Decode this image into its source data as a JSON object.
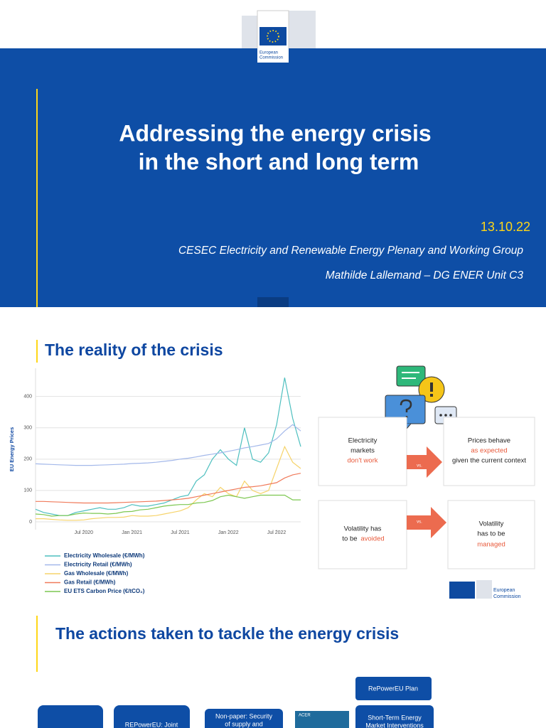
{
  "header": {
    "logo_text": [
      "European",
      "Commission"
    ]
  },
  "title_slide": {
    "title": [
      "Addressing the energy crisis",
      "in the short and long term"
    ],
    "date": "13.10.22",
    "subtitle": "CESEC Electricity and Renewable Energy Plenary and Working Group",
    "author": "Mathilde Lallemand – DG ENER Unit C3"
  },
  "reality_slide": {
    "title": "The reality of the crisis",
    "comparisons": [
      {
        "left": [
          "Electricity",
          "markets"
        ],
        "left_highlight": "don't work",
        "vs": "vs.",
        "right": [
          "Prices behave"
        ],
        "right_highlight": "as expected",
        "right_after": "given the current context"
      },
      {
        "left": [
          "Volatility has"
        ],
        "left_prefix": "to be",
        "left_highlight": "avoided",
        "vs": "vs.",
        "right": [
          "Volatility",
          "has to be"
        ],
        "right_highlight": "managed"
      }
    ],
    "logo_text": [
      "European",
      "Commission"
    ]
  },
  "chart_data": {
    "type": "line",
    "ylabel": "EU Energy Prices",
    "x": [
      "2020-01",
      "2020-02",
      "2020-03",
      "2020-04",
      "2020-05",
      "2020-06",
      "2020-07",
      "2020-08",
      "2020-09",
      "2020-10",
      "2020-11",
      "2020-12",
      "2021-01",
      "2021-02",
      "2021-03",
      "2021-04",
      "2021-05",
      "2021-06",
      "2021-07",
      "2021-08",
      "2021-09",
      "2021-10",
      "2021-11",
      "2021-12",
      "2022-01",
      "2022-02",
      "2022-03",
      "2022-04",
      "2022-05",
      "2022-06",
      "2022-07",
      "2022-08",
      "2022-09",
      "2022-10"
    ],
    "xlim": [
      "2020-01",
      "2022-10"
    ],
    "xticks": [
      {
        "value": "2020-07",
        "label": "Jul 2020"
      },
      {
        "value": "2021-01",
        "label": "Jan 2021"
      },
      {
        "value": "2021-07",
        "label": "Jul 2021"
      },
      {
        "value": "2022-01",
        "label": "Jan 2022"
      },
      {
        "value": "2022-07",
        "label": "Jul 2022"
      }
    ],
    "ylim": [
      -25,
      490
    ],
    "yticks": [
      0,
      100,
      200,
      300,
      400
    ],
    "grid": true,
    "series": [
      {
        "name": "Electricity Wholesale (€/MWh)",
        "color": "#4dbfbf",
        "values": [
          40,
          30,
          25,
          20,
          20,
          30,
          35,
          40,
          45,
          40,
          40,
          45,
          55,
          50,
          50,
          55,
          60,
          70,
          80,
          85,
          130,
          150,
          200,
          230,
          200,
          180,
          300,
          200,
          190,
          220,
          310,
          460,
          330,
          240
        ]
      },
      {
        "name": "Electricity Retail (€/MWh)",
        "color": "#a3b8ea",
        "values": [
          185,
          184,
          183,
          182,
          181,
          180,
          180,
          180,
          181,
          182,
          183,
          184,
          186,
          187,
          188,
          190,
          193,
          196,
          200,
          203,
          207,
          212,
          216,
          220,
          225,
          230,
          236,
          240,
          245,
          250,
          265,
          290,
          310,
          290
        ]
      },
      {
        "name": "Gas Wholesale (€/MWh)",
        "color": "#f6d36a",
        "values": [
          10,
          10,
          8,
          6,
          5,
          5,
          6,
          10,
          12,
          14,
          14,
          15,
          20,
          18,
          18,
          20,
          25,
          30,
          35,
          45,
          70,
          90,
          80,
          110,
          90,
          80,
          130,
          100,
          90,
          100,
          170,
          240,
          190,
          170
        ]
      },
      {
        "name": "Gas Retail (€/MWh)",
        "color": "#f07a5a",
        "values": [
          65,
          65,
          64,
          63,
          62,
          61,
          60,
          60,
          60,
          60,
          61,
          62,
          63,
          64,
          65,
          66,
          68,
          70,
          72,
          75,
          80,
          85,
          90,
          95,
          100,
          105,
          110,
          112,
          115,
          120,
          125,
          140,
          150,
          155
        ]
      },
      {
        "name": "EU ETS Carbon Price (€/tCO₂)",
        "color": "#7cc750",
        "values": [
          25,
          23,
          18,
          20,
          20,
          25,
          28,
          27,
          27,
          25,
          27,
          32,
          33,
          38,
          40,
          45,
          50,
          53,
          55,
          55,
          60,
          62,
          68,
          80,
          85,
          80,
          75,
          80,
          85,
          85,
          85,
          85,
          70,
          70
        ]
      }
    ]
  },
  "actions_slide": {
    "title": "The actions taken to tackle the energy crisis",
    "plan": "RePowerEU Plan",
    "boxes": [
      [
        "REPowerEU: Joint"
      ],
      [
        "Non-paper: Security",
        "of supply and"
      ],
      [
        "ACER"
      ],
      [
        "Short-Term Energy",
        "Market Interventions"
      ]
    ]
  }
}
